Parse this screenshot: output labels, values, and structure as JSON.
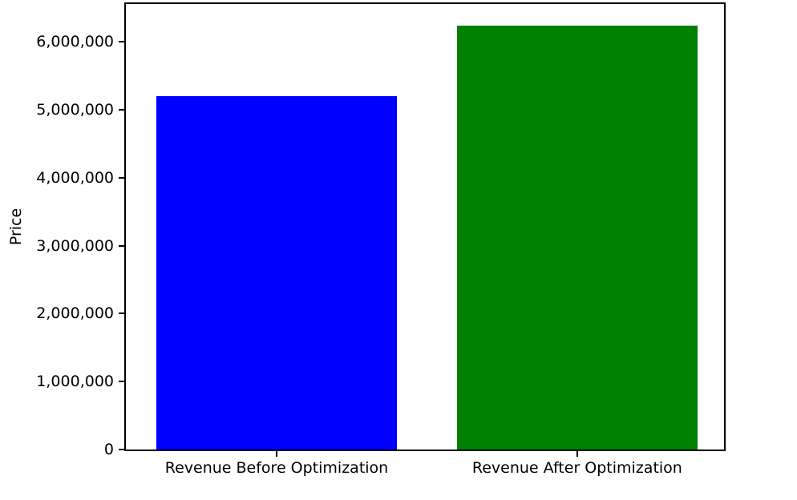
{
  "figure": {
    "background": "#ffffff",
    "spine_color": "#000000",
    "text_color": "#000000"
  },
  "chart_data": {
    "type": "bar",
    "title": "",
    "xlabel": "",
    "ylabel": "Price",
    "categories": [
      "Revenue Before Optimization",
      "Revenue After Optimization"
    ],
    "values": [
      5200000,
      6240000
    ],
    "colors": [
      "#0000ff",
      "#008000"
    ],
    "ylim": [
      0,
      6560000
    ],
    "yticks": [
      0,
      1000000,
      2000000,
      3000000,
      4000000,
      5000000,
      6000000
    ],
    "ytick_labels": [
      "0",
      "1,000,000",
      "2,000,000",
      "3,000,000",
      "4,000,000",
      "5,000,000",
      "6,000,000"
    ],
    "bar_centers_fraction": [
      0.252,
      0.7545
    ],
    "bar_width_fraction": 0.402,
    "grid": "off",
    "legend": "none"
  }
}
